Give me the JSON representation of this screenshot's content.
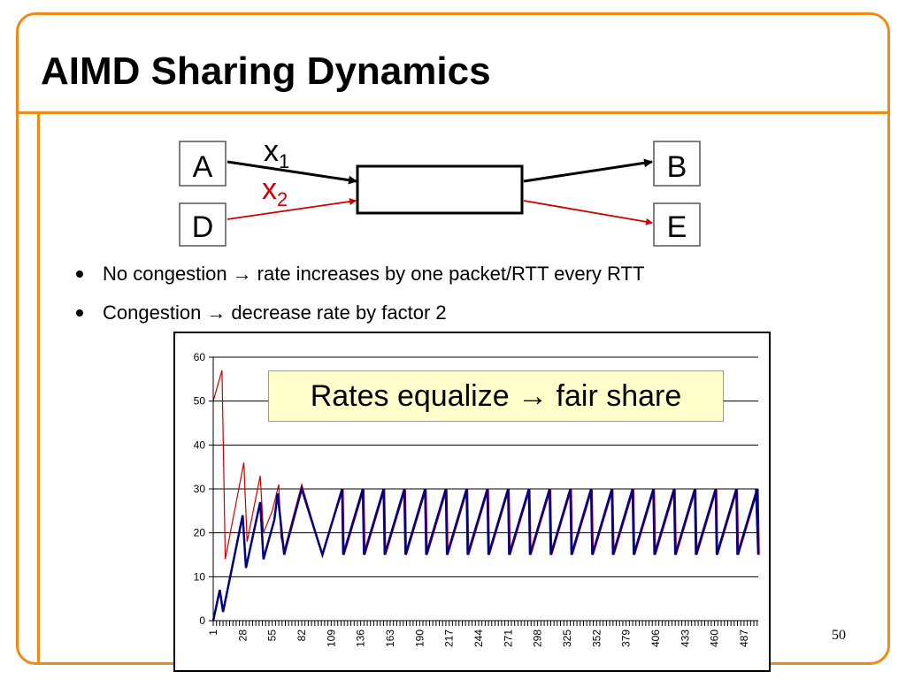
{
  "slide": {
    "title": "AIMD Sharing Dynamics",
    "page_number": "50",
    "accent_color": "#ef8a16"
  },
  "diagram": {
    "nodes": {
      "a": "A",
      "b": "B",
      "d": "D",
      "e": "E"
    },
    "flow1": {
      "var": "x",
      "sub": "1",
      "color": "#000000"
    },
    "flow2": {
      "var": "x",
      "sub": "2",
      "color": "#cc0000"
    }
  },
  "bullets": [
    {
      "before": "No congestion",
      "arrow": "→",
      "after": "rate increases by one packet/RTT every RTT"
    },
    {
      "before": "Congestion",
      "arrow": "→",
      "after": "decrease rate by factor 2"
    }
  ],
  "callout": {
    "text": "Rates equalize → fair share"
  },
  "chart_data": {
    "type": "line",
    "ylim": [
      0,
      60
    ],
    "yticks": [
      0,
      10,
      20,
      30,
      40,
      50,
      60
    ],
    "xlim": [
      1,
      500
    ],
    "xtick_labels": [
      "1",
      "28",
      "55",
      "82",
      "109",
      "136",
      "163",
      "190",
      "217",
      "244",
      "271",
      "298",
      "325",
      "352",
      "379",
      "406",
      "433",
      "460",
      "487"
    ],
    "grid": "horizontal",
    "series": [
      {
        "color": "#cc0000",
        "line_width": 1.2,
        "x": [
          1,
          9,
          12,
          29,
          32,
          44,
          47,
          55,
          61,
          63,
          66,
          82,
          101
        ],
        "y": [
          50,
          57,
          14,
          36,
          18,
          33,
          20,
          25,
          31,
          19,
          16,
          31,
          15
        ]
      },
      {
        "color": "#000080",
        "line_width": 2.5,
        "x": [
          1,
          7,
          10,
          28,
          31,
          44,
          47,
          57,
          60,
          66,
          68,
          82,
          101
        ],
        "y": [
          0,
          7,
          2,
          24,
          12,
          27,
          14,
          23,
          29,
          15,
          17,
          30,
          15
        ]
      }
    ],
    "steady_state": {
      "low": 15,
      "high": 30,
      "period": 19,
      "start_x": 101,
      "end_x": 500
    }
  }
}
